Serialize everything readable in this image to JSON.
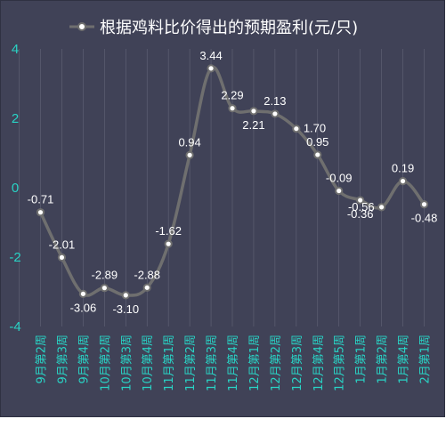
{
  "chart_data": {
    "type": "line",
    "title": "",
    "xlabel": "",
    "ylabel": "",
    "ylim": [
      -4,
      4
    ],
    "yticks": [
      4,
      2,
      0,
      -2,
      -4
    ],
    "grid": "vertical",
    "legend_position": "top-center",
    "smooth": true,
    "categories": [
      "9月第2周",
      "9月第3周",
      "9月第4周",
      "10月第2周",
      "10月第3周",
      "10月第4周",
      "11月第1周",
      "11月第2周",
      "11月第3周",
      "11月第4周",
      "12月第1周",
      "12月第2周",
      "12月第3周",
      "12月第4周",
      "12月第5周",
      "1月第1周",
      "1月第2周",
      "1月第4周",
      "2月第1周"
    ],
    "series": [
      {
        "name": "根据鸡料比价得出的预期盈利(元/只)",
        "values": [
          -0.71,
          -2.01,
          -3.06,
          -2.89,
          -3.1,
          -2.88,
          -1.62,
          0.94,
          3.44,
          2.29,
          2.21,
          2.13,
          1.7,
          0.95,
          -0.09,
          -0.36,
          -0.56,
          0.19,
          -0.48
        ],
        "labels": [
          "-0.71",
          "-2.01",
          "-3.06",
          "-2.89",
          "-3.10",
          "-2.88",
          "-1.62",
          "0.94",
          "3.44",
          "2.29",
          "2.21",
          "2.13",
          "1.70",
          "0.95",
          "-0.09",
          "-0.36",
          "-0.56",
          "0.19",
          "-0.48"
        ],
        "label_positions": [
          "above",
          "above",
          "below",
          "above",
          "below",
          "above",
          "above",
          "above",
          "above",
          "above",
          "below",
          "above",
          "right",
          "above",
          "above",
          "below",
          "left",
          "above",
          "below"
        ]
      }
    ]
  },
  "colors": {
    "background": "#404257",
    "line": "#6f6f6f",
    "marker_fill": "#ffffff",
    "tick_text": "#29d3c5",
    "label_text": "#ffffff",
    "grid": "#7a7c8e"
  }
}
